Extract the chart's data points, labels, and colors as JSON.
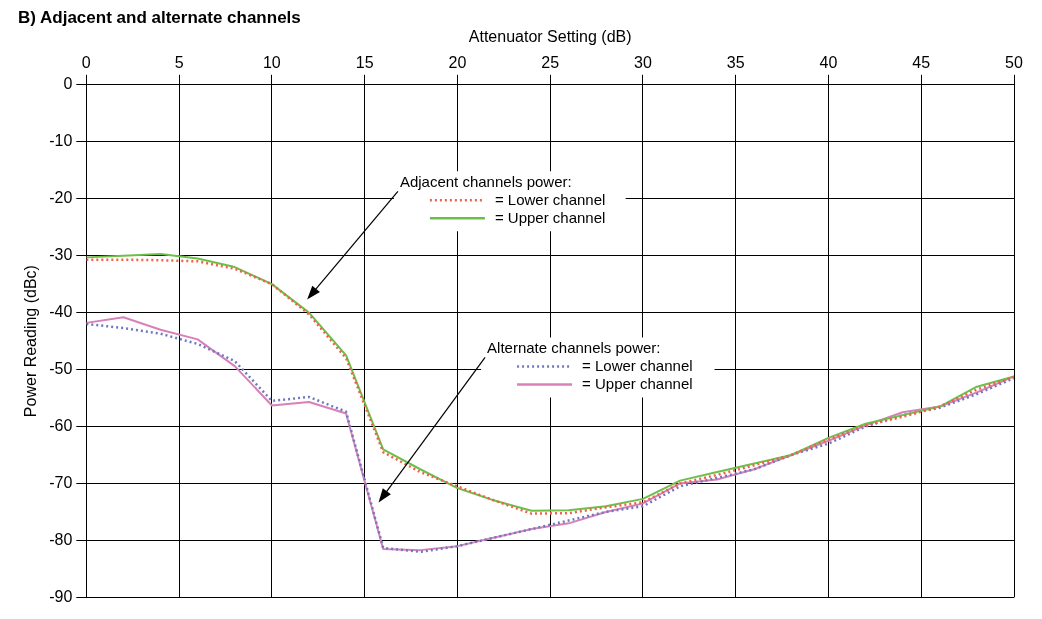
{
  "chart_data": {
    "type": "line",
    "title": "B) Adjacent and alternate channels",
    "xlabel": "Attenuator Setting (dB)",
    "ylabel": "Power Reading (dBc)",
    "x": [
      0,
      2,
      4,
      6,
      8,
      10,
      12,
      14,
      16,
      18,
      20,
      22,
      24,
      26,
      28,
      30,
      32,
      34,
      36,
      38,
      40,
      42,
      44,
      46,
      48,
      50
    ],
    "xlim": [
      0,
      50
    ],
    "xticks": [
      0,
      5,
      10,
      15,
      20,
      25,
      30,
      35,
      40,
      45,
      50
    ],
    "ylim": [
      -90,
      0
    ],
    "yticks": [
      -90,
      -80,
      -70,
      -60,
      -50,
      -40,
      -30,
      -20,
      -10,
      0
    ],
    "grid": true,
    "marker": "none",
    "legend": "top",
    "annotations": [
      "Adjacent channels power:",
      "Alternate channels power:"
    ],
    "series": [
      {
        "name": "= Lower channel",
        "color": "#f0604a",
        "line_style": "dotted",
        "values": [
          -30.7,
          -30.7,
          -30.8,
          -31,
          -32.3,
          -35,
          -40.3,
          -48,
          -64.5,
          -68,
          -70.5,
          -73,
          -75.3,
          -75.2,
          -74.2,
          -73.3,
          -70,
          -68.5,
          -66.8,
          -65,
          -62.3,
          -59.8,
          -58.3,
          -56.5,
          -53.5,
          -51.3
        ]
      },
      {
        "name": "= Upper channel",
        "color": "#6cc04a",
        "line_style": "solid",
        "values": [
          -30.3,
          -30,
          -29.7,
          -30.5,
          -32,
          -35,
          -40,
          -47.5,
          -64,
          -67.5,
          -70.8,
          -73,
          -74.8,
          -74.7,
          -74,
          -72.7,
          -69.5,
          -68,
          -66.5,
          -65,
          -62,
          -59.5,
          -58,
          -56.5,
          -53,
          -51.2
        ]
      },
      {
        "name": "= Lower channel",
        "color": "#6e78c0",
        "line_style": "dotted",
        "values": [
          -42,
          -42.7,
          -43.7,
          -45.5,
          -48.5,
          -55.5,
          -54.8,
          -57.4,
          -81.3,
          -82,
          -81,
          -79.5,
          -78,
          -76.5,
          -75,
          -74,
          -70.5,
          -69,
          -67.5,
          -65,
          -63,
          -60,
          -58,
          -56.7,
          -54.3,
          -51.5
        ]
      },
      {
        "name": "= Upper channel",
        "color": "#d880b8",
        "line_style": "solid",
        "values": [
          -41.8,
          -40.8,
          -43,
          -44.7,
          -49.4,
          -56.3,
          -55.7,
          -57.7,
          -81.5,
          -81.7,
          -81,
          -79.5,
          -78,
          -77,
          -75,
          -73.5,
          -70,
          -69.3,
          -67.5,
          -65,
          -62.5,
          -59.8,
          -57.5,
          -56.5,
          -54,
          -51.2
        ]
      }
    ]
  }
}
